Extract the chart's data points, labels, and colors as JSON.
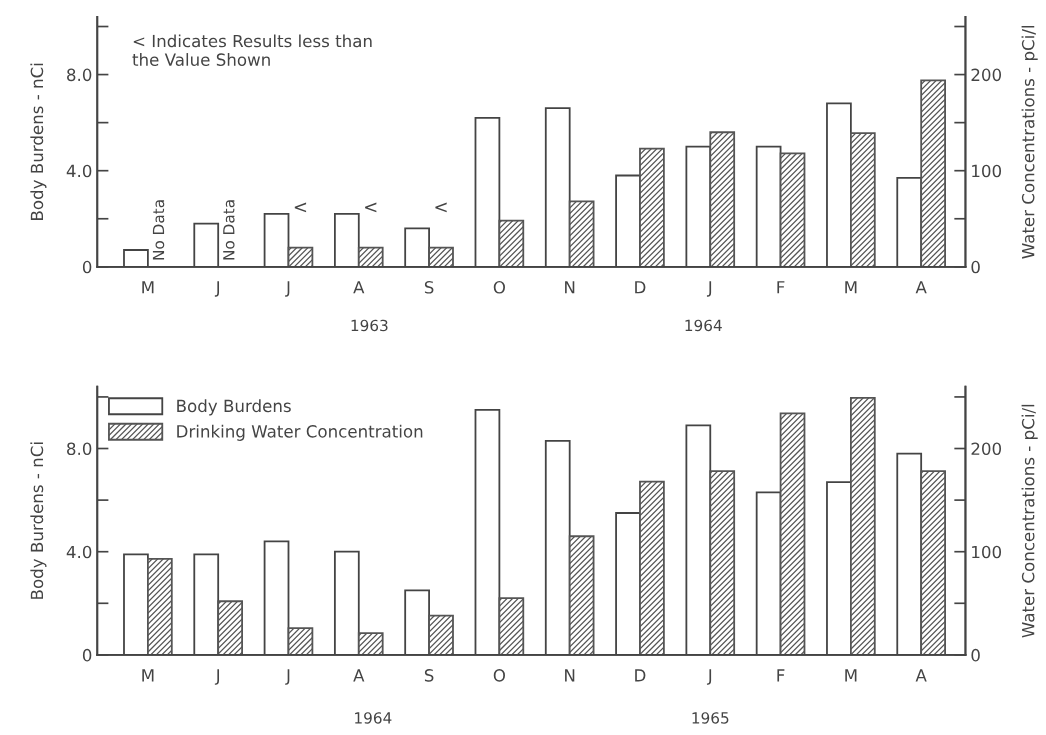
{
  "chart_data": [
    {
      "type": "bar",
      "categories": [
        "M",
        "J",
        "J",
        "A",
        "S",
        "O",
        "N",
        "D",
        "J",
        "F",
        "M",
        "A"
      ],
      "series": [
        {
          "color": "#ffffff",
          "values": [
            0.7,
            1.8,
            2.2,
            2.2,
            1.6,
            6.2,
            6.6,
            3.8,
            5.0,
            5.0,
            6.8,
            3.7
          ]
        },
        {
          "color": "#555555",
          "axis": "y2",
          "values": [
            null,
            null,
            20,
            20,
            20,
            48,
            68,
            123,
            140,
            118,
            139,
            194
          ]
        }
      ],
      "ylabel": "Body Burdens - nCi",
      "y2label": "Water Concentrations - pCi/l",
      "ylim": [
        0,
        10.4
      ],
      "yticks": [
        0,
        {
          "value": 2,
          "label": null
        },
        {
          "value": 4,
          "label": "4.0"
        },
        {
          "value": 6,
          "label": null
        },
        {
          "value": 8,
          "label": "8.0"
        },
        {
          "value": 10,
          "label": null
        }
      ],
      "y2lim": [
        0,
        260
      ],
      "y2ticks": [
        0,
        {
          "value": 50,
          "label": null
        },
        100,
        {
          "value": 150,
          "label": null
        },
        200,
        {
          "value": 250,
          "label": null
        }
      ],
      "annotations": [
        "< Indicates Results less than\nthe Value Shown",
        {
          "text": "No Data",
          "x": "M",
          "y": 0
        },
        {
          "text": "No Data",
          "x": "J",
          "y": 0
        },
        "<",
        "<",
        "1963",
        "<",
        "1964"
      ],
      "legend": false
    },
    {
      "type": "bar",
      "categories": [
        "M",
        "J",
        "J",
        "A",
        "S",
        "O",
        "N",
        "D",
        "J",
        "F",
        "M",
        "A"
      ],
      "series": [
        {
          "name": "Body Burdens",
          "color": "#ffffff",
          "values": [
            3.9,
            3.9,
            4.4,
            4.0,
            2.5,
            9.5,
            8.3,
            5.5,
            8.9,
            6.3,
            6.7,
            7.8
          ]
        },
        {
          "name": "Drinking Water Concentration",
          "color": "#555555",
          "axis": "y2",
          "values": [
            93,
            52,
            26,
            21,
            38,
            55,
            115,
            168,
            178,
            234,
            249,
            178
          ]
        }
      ],
      "ylabel": "Body Burdens - nCi",
      "y2label": "Water Concentrations - pCi/l",
      "ylim": [
        0,
        10.4
      ],
      "yticks": [
        0,
        {
          "value": 2,
          "label": null
        },
        {
          "value": 4,
          "label": "4.0"
        },
        {
          "value": 6,
          "label": null
        },
        {
          "value": 8,
          "label": "8.0"
        },
        {
          "value": 10,
          "label": null
        }
      ],
      "y2lim": [
        0,
        260
      ],
      "y2ticks": [
        0,
        {
          "value": 50,
          "label": null
        },
        100,
        {
          "value": 150,
          "label": null
        },
        200,
        {
          "value": 250,
          "label": null
        }
      ],
      "annotations": [
        "1964",
        "1965"
      ],
      "legend": "top left"
    }
  ]
}
